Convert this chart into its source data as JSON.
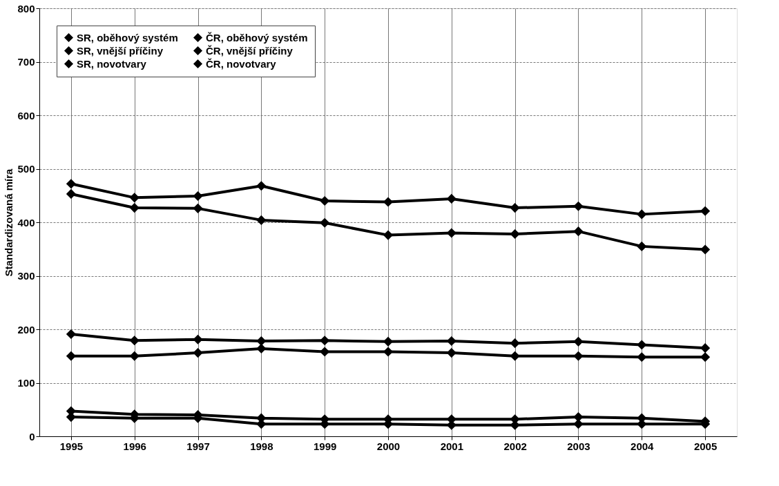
{
  "chart_data": {
    "type": "line",
    "ylabel": "Standardizovaná míra",
    "categories": [
      "1995",
      "1996",
      "1997",
      "1998",
      "1999",
      "2000",
      "2001",
      "2002",
      "2003",
      "2004",
      "2005"
    ],
    "ylim": [
      0,
      800
    ],
    "yticks": [
      0,
      100,
      200,
      300,
      400,
      500,
      600,
      700,
      800
    ],
    "grid": true,
    "legend": "top left",
    "marker": "diamond",
    "line_style": "solid",
    "series": [
      {
        "name": "SR, oběhový systém",
        "color": "#000000",
        "values": [
          472,
          446,
          449,
          468,
          440,
          438,
          444,
          427,
          430,
          415,
          421
        ]
      },
      {
        "name": "ČR, oběhový systém",
        "color": "#000000",
        "values": [
          453,
          427,
          426,
          404,
          399,
          376,
          380,
          378,
          383,
          355,
          349
        ]
      },
      {
        "name": "SR, vnější příčiny",
        "color": "#000000",
        "values": [
          47,
          41,
          40,
          34,
          32,
          32,
          32,
          32,
          36,
          34,
          28
        ]
      },
      {
        "name": "ČR, vnější příčiny",
        "color": "#000000",
        "values": [
          36,
          34,
          34,
          23,
          23,
          23,
          21,
          21,
          23,
          23,
          23
        ]
      },
      {
        "name": "SR, novotvary",
        "color": "#000000",
        "values": [
          150,
          150,
          156,
          164,
          158,
          158,
          156,
          150,
          150,
          148,
          148
        ]
      },
      {
        "name": "ČR, novotvary",
        "color": "#000000",
        "values": [
          191,
          179,
          181,
          178,
          179,
          177,
          178,
          174,
          177,
          171,
          165
        ]
      }
    ]
  }
}
